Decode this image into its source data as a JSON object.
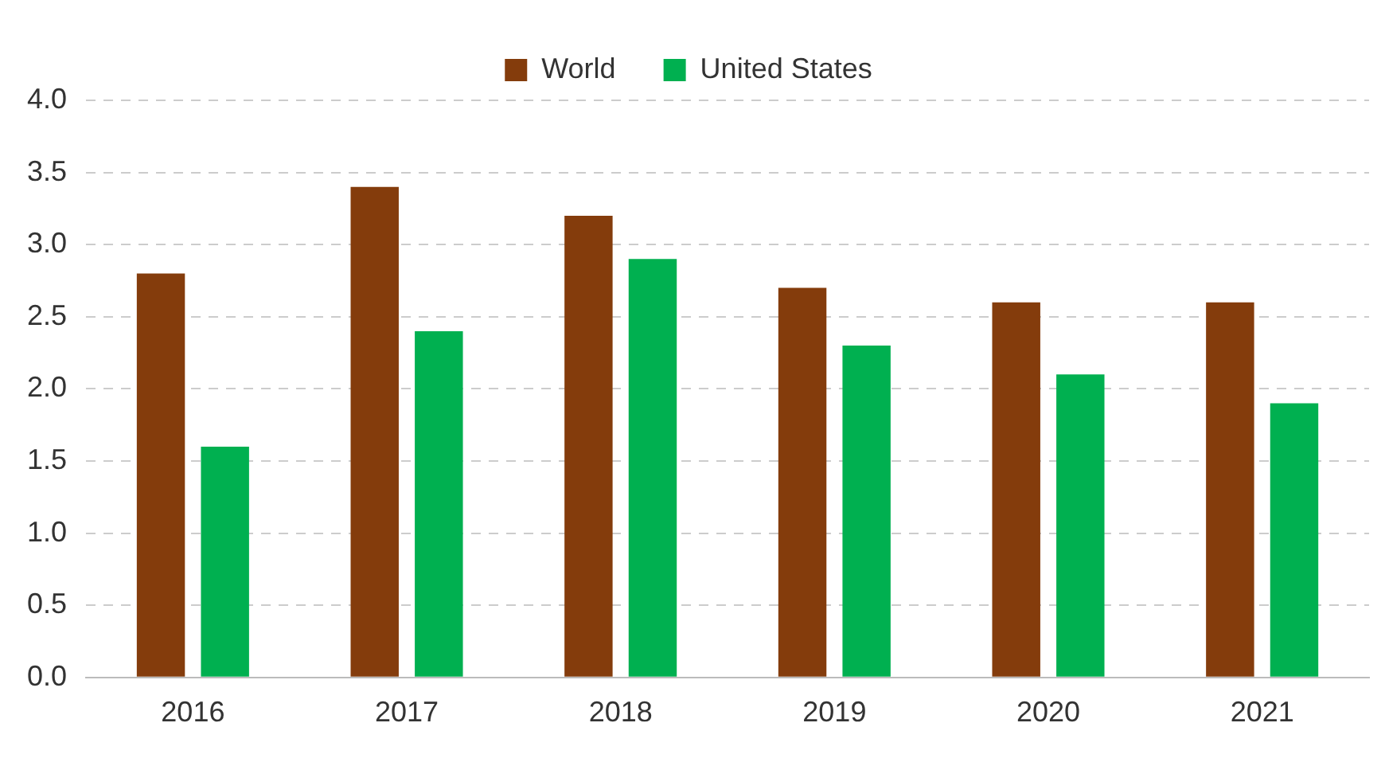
{
  "chart_data": {
    "type": "bar",
    "categories": [
      "2016",
      "2017",
      "2018",
      "2019",
      "2020",
      "2021"
    ],
    "series": [
      {
        "name": "World",
        "color": "#843c0c",
        "values": [
          2.8,
          3.4,
          3.2,
          2.7,
          2.6,
          2.6
        ]
      },
      {
        "name": "United States",
        "color": "#00b050",
        "values": [
          1.6,
          2.4,
          2.9,
          2.3,
          2.1,
          1.9
        ]
      }
    ],
    "ylim": [
      0,
      4
    ],
    "yticks": [
      {
        "value": 0,
        "label": "0.0"
      },
      {
        "value": 0.5,
        "label": "0.5"
      },
      {
        "value": 1,
        "label": "1.0"
      },
      {
        "value": 1.5,
        "label": "1.5"
      },
      {
        "value": 2,
        "label": "2.0"
      },
      {
        "value": 2.5,
        "label": "2.5"
      },
      {
        "value": 3,
        "label": "3.0"
      },
      {
        "value": 3.5,
        "label": "3.5"
      },
      {
        "value": 4,
        "label": "4.0"
      }
    ],
    "grid": "y",
    "legend": "top"
  }
}
